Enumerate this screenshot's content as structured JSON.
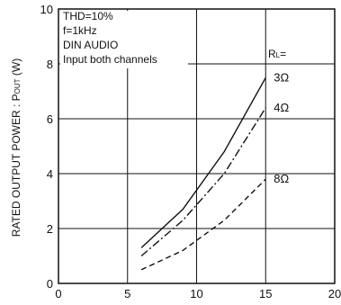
{
  "chart_data": {
    "type": "line",
    "ylabel": "RATED OUTPUT POWER : P",
    "ylabel_sub": "OUT",
    "ylabel_unit": " (W)",
    "xlim": [
      0,
      20
    ],
    "ylim": [
      0,
      10
    ],
    "x_ticks": [
      "0",
      "5",
      "10",
      "15",
      "20"
    ],
    "y_ticks": [
      "0",
      "2",
      "4",
      "6",
      "8",
      "10"
    ],
    "grid": true,
    "annotation": [
      "THD=10%",
      "f=1kHz",
      "DIN AUDIO",
      "Input both channels"
    ],
    "legend_heading": "R",
    "legend_heading_sub": "L",
    "legend_heading_suffix": "=",
    "series": [
      {
        "name": "3Ω",
        "style": "solid",
        "x": [
          6,
          9,
          12,
          15
        ],
        "y": [
          1.3,
          2.7,
          4.8,
          7.5
        ]
      },
      {
        "name": "4Ω",
        "style": "dashdot",
        "x": [
          6,
          9,
          12,
          15
        ],
        "y": [
          1.0,
          2.3,
          4.0,
          6.4
        ]
      },
      {
        "name": "8Ω",
        "style": "dashed",
        "x": [
          6,
          9,
          12,
          15
        ],
        "y": [
          0.5,
          1.2,
          2.3,
          3.8
        ]
      }
    ]
  }
}
